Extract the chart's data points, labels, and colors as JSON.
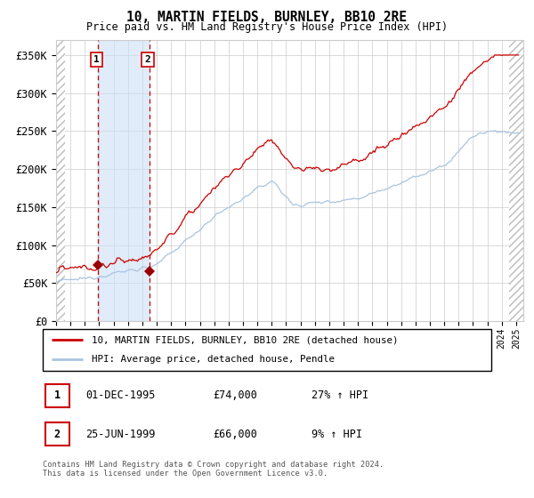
{
  "title": "10, MARTIN FIELDS, BURNLEY, BB10 2RE",
  "subtitle": "Price paid vs. HM Land Registry's House Price Index (HPI)",
  "legend_line1": "10, MARTIN FIELDS, BURNLEY, BB10 2RE (detached house)",
  "legend_line2": "HPI: Average price, detached house, Pendle",
  "annotation1_label": "1",
  "annotation1_date": "01-DEC-1995",
  "annotation1_price": "£74,000",
  "annotation1_hpi": "27% ↑ HPI",
  "annotation2_label": "2",
  "annotation2_date": "25-JUN-1999",
  "annotation2_price": "£66,000",
  "annotation2_hpi": "9% ↑ HPI",
  "footer": "Contains HM Land Registry data © Crown copyright and database right 2024.\nThis data is licensed under the Open Government Licence v3.0.",
  "hpi_color": "#aac4e0",
  "price_color": "#cc0000",
  "marker_color": "#990000",
  "vline_color": "#cc0000",
  "shading_color": "#cce0f5",
  "grid_color": "#cccccc",
  "ylim": [
    0,
    370000
  ],
  "yticks": [
    0,
    50000,
    100000,
    150000,
    200000,
    250000,
    300000,
    350000
  ],
  "ytick_labels": [
    "£0",
    "£50K",
    "£100K",
    "£150K",
    "£200K",
    "£250K",
    "£300K",
    "£350K"
  ],
  "sale1_year": 1995.92,
  "sale1_price": 74000,
  "sale2_year": 1999.48,
  "sale2_price": 66000,
  "bg_color": "#ffffff"
}
